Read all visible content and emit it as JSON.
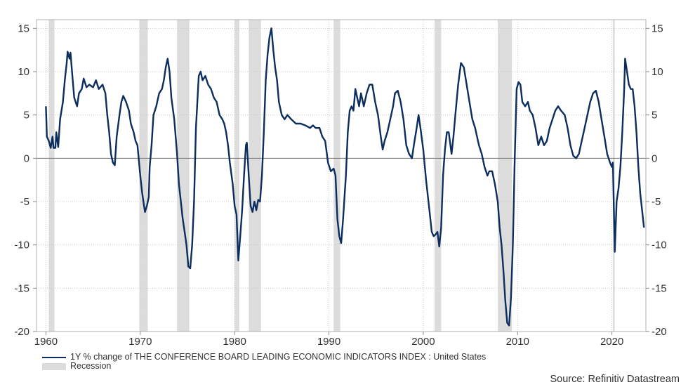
{
  "chart_data": {
    "type": "line",
    "xlim": [
      1959,
      2023.6
    ],
    "ylim": [
      -20,
      16
    ],
    "x_ticks": [
      1960,
      1970,
      1980,
      1990,
      2000,
      2010,
      2020
    ],
    "y_ticks": [
      -20,
      -15,
      -10,
      -5,
      0,
      5,
      10,
      15
    ],
    "grid": true,
    "legend_position": "bottom-left",
    "series": [
      {
        "name": "1Y % change of THE CONFERENCE BOARD LEADING ECONOMIC INDICATORS INDEX : United States",
        "color": "#0b2e5e",
        "points": [
          [
            1960.0,
            6.0
          ],
          [
            1960.1,
            2.5
          ],
          [
            1960.3,
            2.0
          ],
          [
            1960.5,
            1.2
          ],
          [
            1960.7,
            2.5
          ],
          [
            1960.8,
            1.2
          ],
          [
            1961.0,
            1.2
          ],
          [
            1961.1,
            3.0
          ],
          [
            1961.3,
            1.3
          ],
          [
            1961.5,
            4.5
          ],
          [
            1961.8,
            6.5
          ],
          [
            1962.0,
            9.0
          ],
          [
            1962.2,
            11.0
          ],
          [
            1962.3,
            12.3
          ],
          [
            1962.5,
            11.5
          ],
          [
            1962.6,
            12.2
          ],
          [
            1962.8,
            9.5
          ],
          [
            1963.0,
            7.0
          ],
          [
            1963.3,
            6.0
          ],
          [
            1963.5,
            7.5
          ],
          [
            1963.8,
            8.0
          ],
          [
            1964.0,
            9.2
          ],
          [
            1964.3,
            8.2
          ],
          [
            1964.6,
            8.5
          ],
          [
            1965.0,
            8.2
          ],
          [
            1965.3,
            9.0
          ],
          [
            1965.6,
            8.0
          ],
          [
            1966.0,
            8.5
          ],
          [
            1966.3,
            7.5
          ],
          [
            1966.5,
            5.0
          ],
          [
            1966.7,
            3.0
          ],
          [
            1966.9,
            0.5
          ],
          [
            1967.1,
            -0.5
          ],
          [
            1967.3,
            -0.8
          ],
          [
            1967.5,
            2.5
          ],
          [
            1967.8,
            5.0
          ],
          [
            1968.0,
            6.5
          ],
          [
            1968.2,
            7.2
          ],
          [
            1968.5,
            6.5
          ],
          [
            1968.8,
            5.5
          ],
          [
            1969.0,
            4.0
          ],
          [
            1969.3,
            3.0
          ],
          [
            1969.5,
            2.0
          ],
          [
            1969.7,
            1.5
          ],
          [
            1970.0,
            -2.0
          ],
          [
            1970.2,
            -4.0
          ],
          [
            1970.4,
            -5.5
          ],
          [
            1970.5,
            -6.2
          ],
          [
            1970.7,
            -5.5
          ],
          [
            1970.9,
            -4.5
          ],
          [
            1971.0,
            -1.0
          ],
          [
            1971.2,
            1.5
          ],
          [
            1971.4,
            5.0
          ],
          [
            1971.7,
            6.0
          ],
          [
            1972.0,
            7.5
          ],
          [
            1972.3,
            8.0
          ],
          [
            1972.5,
            9.0
          ],
          [
            1972.7,
            10.5
          ],
          [
            1972.9,
            11.5
          ],
          [
            1973.1,
            10.0
          ],
          [
            1973.3,
            7.0
          ],
          [
            1973.6,
            4.5
          ],
          [
            1973.9,
            0.5
          ],
          [
            1974.1,
            -3.0
          ],
          [
            1974.3,
            -5.0
          ],
          [
            1974.5,
            -7.0
          ],
          [
            1974.7,
            -8.5
          ],
          [
            1974.9,
            -10.0
          ],
          [
            1975.1,
            -12.5
          ],
          [
            1975.3,
            -12.7
          ],
          [
            1975.5,
            -10.0
          ],
          [
            1975.7,
            -5.0
          ],
          [
            1975.9,
            3.5
          ],
          [
            1976.2,
            9.5
          ],
          [
            1976.4,
            10.0
          ],
          [
            1976.6,
            9.0
          ],
          [
            1976.9,
            9.5
          ],
          [
            1977.2,
            8.5
          ],
          [
            1977.5,
            8.0
          ],
          [
            1977.8,
            7.0
          ],
          [
            1978.1,
            6.5
          ],
          [
            1978.4,
            5.0
          ],
          [
            1978.7,
            4.5
          ],
          [
            1978.9,
            4.0
          ],
          [
            1979.1,
            3.0
          ],
          [
            1979.3,
            1.5
          ],
          [
            1979.5,
            -0.5
          ],
          [
            1979.8,
            -3.0
          ],
          [
            1980.0,
            -5.5
          ],
          [
            1980.2,
            -6.5
          ],
          [
            1980.4,
            -11.8
          ],
          [
            1980.6,
            -9.0
          ],
          [
            1980.8,
            -6.0
          ],
          [
            1981.0,
            -2.0
          ],
          [
            1981.2,
            1.5
          ],
          [
            1981.3,
            1.8
          ],
          [
            1981.5,
            -2.0
          ],
          [
            1981.7,
            -5.5
          ],
          [
            1981.9,
            -6.2
          ],
          [
            1982.1,
            -5.0
          ],
          [
            1982.3,
            -6.0
          ],
          [
            1982.5,
            -4.8
          ],
          [
            1982.7,
            -5.0
          ],
          [
            1982.9,
            -2.0
          ],
          [
            1983.1,
            3.0
          ],
          [
            1983.3,
            9.0
          ],
          [
            1983.5,
            12.0
          ],
          [
            1983.7,
            14.0
          ],
          [
            1983.9,
            15.0
          ],
          [
            1984.1,
            12.5
          ],
          [
            1984.3,
            10.5
          ],
          [
            1984.5,
            9.0
          ],
          [
            1984.7,
            6.5
          ],
          [
            1985.0,
            5.0
          ],
          [
            1985.3,
            4.5
          ],
          [
            1985.6,
            5.0
          ],
          [
            1986.0,
            4.5
          ],
          [
            1986.5,
            4.0
          ],
          [
            1987.0,
            4.0
          ],
          [
            1987.5,
            3.8
          ],
          [
            1988.0,
            3.5
          ],
          [
            1988.3,
            3.8
          ],
          [
            1988.6,
            3.5
          ],
          [
            1989.0,
            3.5
          ],
          [
            1989.3,
            2.5
          ],
          [
            1989.6,
            2.0
          ],
          [
            1989.9,
            -0.5
          ],
          [
            1990.2,
            -1.5
          ],
          [
            1990.5,
            -1.2
          ],
          [
            1990.7,
            -2.0
          ],
          [
            1990.9,
            -7.0
          ],
          [
            1991.1,
            -9.0
          ],
          [
            1991.3,
            -9.8
          ],
          [
            1991.5,
            -7.0
          ],
          [
            1991.8,
            -2.0
          ],
          [
            1992.0,
            3.0
          ],
          [
            1992.2,
            5.5
          ],
          [
            1992.4,
            6.0
          ],
          [
            1992.6,
            5.5
          ],
          [
            1992.8,
            8.0
          ],
          [
            1993.0,
            7.0
          ],
          [
            1993.2,
            6.0
          ],
          [
            1993.4,
            7.5
          ],
          [
            1993.7,
            6.0
          ],
          [
            1994.0,
            7.5
          ],
          [
            1994.3,
            8.5
          ],
          [
            1994.6,
            8.5
          ],
          [
            1994.9,
            6.5
          ],
          [
            1995.2,
            5.0
          ],
          [
            1995.5,
            2.5
          ],
          [
            1995.7,
            1.0
          ],
          [
            1995.9,
            2.0
          ],
          [
            1996.2,
            3.0
          ],
          [
            1996.5,
            4.5
          ],
          [
            1996.8,
            6.0
          ],
          [
            1997.0,
            7.5
          ],
          [
            1997.3,
            7.8
          ],
          [
            1997.6,
            6.5
          ],
          [
            1997.9,
            4.5
          ],
          [
            1998.2,
            1.5
          ],
          [
            1998.5,
            0.5
          ],
          [
            1998.8,
            0.0
          ],
          [
            1999.0,
            1.5
          ],
          [
            1999.3,
            3.5
          ],
          [
            1999.5,
            5.0
          ],
          [
            1999.7,
            3.5
          ],
          [
            2000.0,
            1.0
          ],
          [
            2000.3,
            -2.5
          ],
          [
            2000.6,
            -5.5
          ],
          [
            2000.9,
            -8.5
          ],
          [
            2001.1,
            -9.0
          ],
          [
            2001.3,
            -8.8
          ],
          [
            2001.5,
            -8.5
          ],
          [
            2001.7,
            -10.2
          ],
          [
            2001.9,
            -8.0
          ],
          [
            2002.1,
            -2.0
          ],
          [
            2002.3,
            1.0
          ],
          [
            2002.5,
            3.0
          ],
          [
            2002.7,
            3.0
          ],
          [
            2003.0,
            0.5
          ],
          [
            2003.2,
            2.5
          ],
          [
            2003.4,
            5.0
          ],
          [
            2003.7,
            8.5
          ],
          [
            2004.0,
            11.0
          ],
          [
            2004.3,
            10.5
          ],
          [
            2004.6,
            8.5
          ],
          [
            2004.9,
            6.5
          ],
          [
            2005.2,
            4.5
          ],
          [
            2005.5,
            3.5
          ],
          [
            2005.7,
            2.5
          ],
          [
            2005.9,
            1.5
          ],
          [
            2006.2,
            0.5
          ],
          [
            2006.5,
            -1.0
          ],
          [
            2006.8,
            -2.0
          ],
          [
            2007.0,
            -1.5
          ],
          [
            2007.3,
            -1.5
          ],
          [
            2007.6,
            -3.0
          ],
          [
            2007.9,
            -5.0
          ],
          [
            2008.1,
            -8.0
          ],
          [
            2008.3,
            -10.0
          ],
          [
            2008.5,
            -13.0
          ],
          [
            2008.7,
            -16.5
          ],
          [
            2008.9,
            -19.0
          ],
          [
            2009.1,
            -19.3
          ],
          [
            2009.3,
            -16.0
          ],
          [
            2009.5,
            -10.0
          ],
          [
            2009.7,
            0.0
          ],
          [
            2009.9,
            8.0
          ],
          [
            2010.1,
            8.8
          ],
          [
            2010.3,
            8.5
          ],
          [
            2010.5,
            6.5
          ],
          [
            2010.8,
            6.0
          ],
          [
            2011.1,
            6.5
          ],
          [
            2011.3,
            5.5
          ],
          [
            2011.6,
            5.0
          ],
          [
            2011.9,
            3.5
          ],
          [
            2012.2,
            1.5
          ],
          [
            2012.5,
            2.5
          ],
          [
            2012.8,
            1.5
          ],
          [
            2013.1,
            2.0
          ],
          [
            2013.4,
            3.5
          ],
          [
            2013.7,
            4.5
          ],
          [
            2014.0,
            5.5
          ],
          [
            2014.3,
            6.0
          ],
          [
            2014.6,
            5.5
          ],
          [
            2015.0,
            5.0
          ],
          [
            2015.3,
            3.5
          ],
          [
            2015.6,
            1.5
          ],
          [
            2015.9,
            0.3
          ],
          [
            2016.2,
            0.0
          ],
          [
            2016.5,
            0.5
          ],
          [
            2016.8,
            2.0
          ],
          [
            2017.1,
            3.5
          ],
          [
            2017.4,
            5.0
          ],
          [
            2017.7,
            6.5
          ],
          [
            2018.0,
            7.5
          ],
          [
            2018.3,
            7.8
          ],
          [
            2018.6,
            6.5
          ],
          [
            2018.9,
            4.5
          ],
          [
            2019.2,
            2.5
          ],
          [
            2019.5,
            0.5
          ],
          [
            2019.8,
            -0.5
          ],
          [
            2020.0,
            -1.0
          ],
          [
            2020.1,
            -0.5
          ],
          [
            2020.3,
            -10.8
          ],
          [
            2020.5,
            -5.0
          ],
          [
            2020.7,
            -3.5
          ],
          [
            2020.9,
            -1.0
          ],
          [
            2021.1,
            3.0
          ],
          [
            2021.3,
            8.0
          ],
          [
            2021.4,
            11.5
          ],
          [
            2021.6,
            10.0
          ],
          [
            2021.8,
            8.5
          ],
          [
            2022.0,
            8.0
          ],
          [
            2022.2,
            8.0
          ],
          [
            2022.4,
            6.0
          ],
          [
            2022.6,
            3.0
          ],
          [
            2022.8,
            -1.0
          ],
          [
            2023.0,
            -4.0
          ],
          [
            2023.2,
            -6.0
          ],
          [
            2023.4,
            -8.0
          ]
        ]
      }
    ],
    "recessions": [
      [
        1960.3,
        1960.9
      ],
      [
        1969.9,
        1970.8
      ],
      [
        1973.9,
        1975.2
      ],
      [
        1980.0,
        1980.5
      ],
      [
        1981.5,
        1982.8
      ],
      [
        1990.5,
        1991.2
      ],
      [
        2001.2,
        2001.9
      ],
      [
        2007.9,
        2009.4
      ],
      [
        2020.1,
        2020.3
      ]
    ],
    "recession_label": "Recession",
    "recession_color": "#dcdcdc",
    "source": "Source: Refinitiv Datastream"
  }
}
